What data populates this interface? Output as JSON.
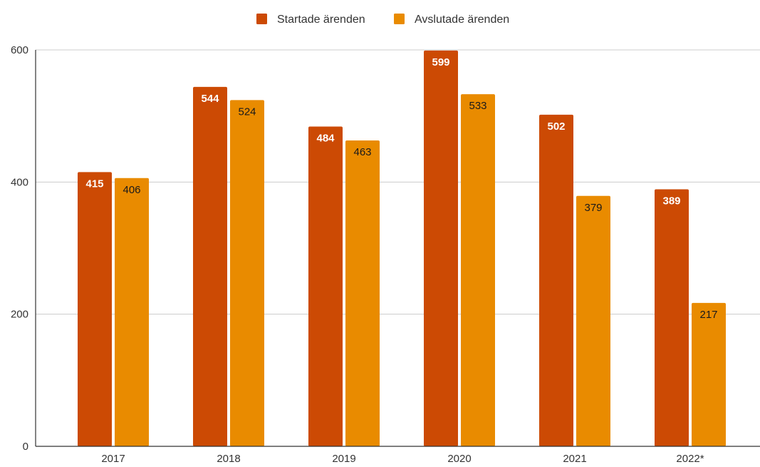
{
  "chart_data": {
    "type": "bar",
    "categories": [
      "2017",
      "2018",
      "2019",
      "2020",
      "2021",
      "2022*"
    ],
    "series": [
      {
        "name": "Startade ärenden",
        "values": [
          415,
          544,
          484,
          599,
          502,
          389
        ],
        "color": "#cc4a04",
        "label_color": "#ffffff"
      },
      {
        "name": "Avslutade ärenden",
        "values": [
          406,
          524,
          463,
          533,
          379,
          217
        ],
        "color": "#e98b00",
        "label_color": "#1a1a1a"
      }
    ],
    "y_ticks": [
      0,
      200,
      400,
      600
    ],
    "ylim": [
      0,
      600
    ],
    "legend_position": "top",
    "grid": true,
    "data_labels": true
  }
}
